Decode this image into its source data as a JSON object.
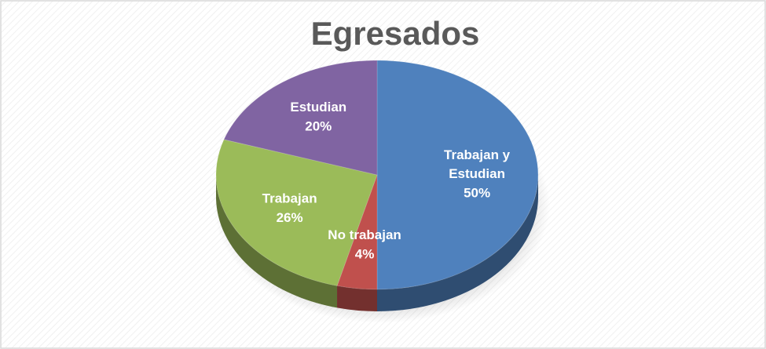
{
  "chart_data": {
    "type": "pie",
    "title": "Egresados",
    "categories": [
      "Trabajan y Estudian",
      "No trabajan",
      "Trabajan",
      "Estudian"
    ],
    "values": [
      50,
      4,
      26,
      20
    ],
    "value_labels": [
      "50%",
      "4%",
      "26%",
      "20%"
    ],
    "colors": [
      "#4f81bd",
      "#c0504d",
      "#9bbb59",
      "#8064a2"
    ]
  }
}
